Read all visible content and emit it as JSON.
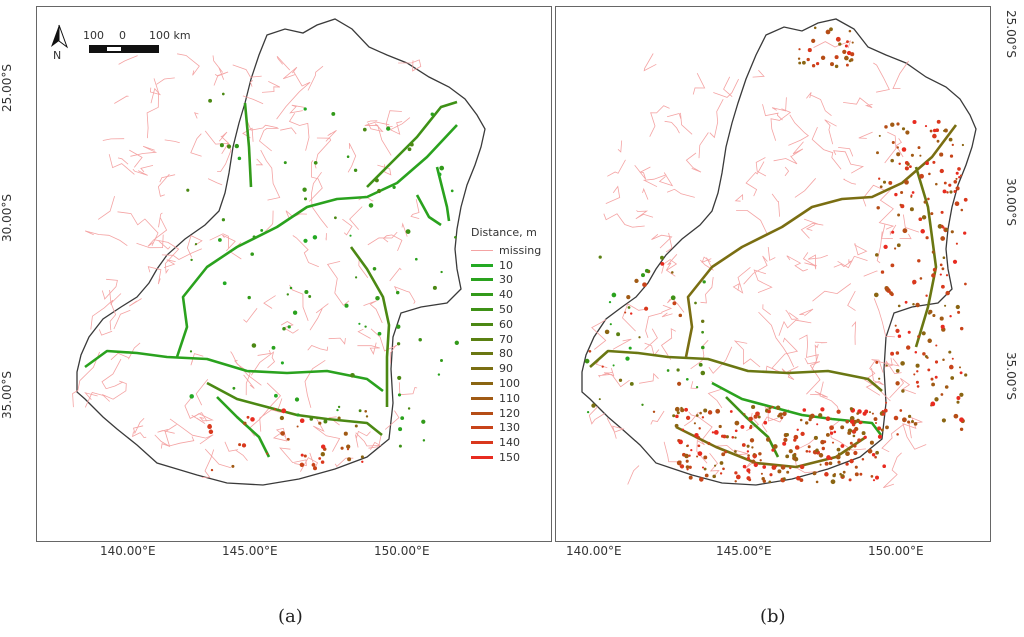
{
  "panels": [
    {
      "caption": "(a)",
      "x_ticks": [
        "140.00°E",
        "145.00°E",
        "150.00°E"
      ],
      "y_ticks": [
        "25.00°S",
        "30.00°S",
        "35.00°S"
      ],
      "scale_bar": {
        "labels": [
          "100",
          "0",
          "100 km"
        ]
      },
      "north_arrow_label": "N",
      "legend": {
        "title": "Distance, m",
        "entries": [
          {
            "label": "missing",
            "color": "#f4a3a3"
          },
          {
            "label": "10",
            "color": "#23a923"
          },
          {
            "label": "30",
            "color": "#2aa21e"
          },
          {
            "label": "40",
            "color": "#329a1a"
          },
          {
            "label": "50",
            "color": "#3e9116"
          },
          {
            "label": "60",
            "color": "#4b8813"
          },
          {
            "label": "70",
            "color": "#5a8012"
          },
          {
            "label": "80",
            "color": "#6a7712"
          },
          {
            "label": "90",
            "color": "#7a6e12"
          },
          {
            "label": "100",
            "color": "#8a6512"
          },
          {
            "label": "110",
            "color": "#a05a14"
          },
          {
            "label": "120",
            "color": "#b54d16"
          },
          {
            "label": "130",
            "color": "#c84319"
          },
          {
            "label": "140",
            "color": "#d9381d"
          },
          {
            "label": "150",
            "color": "#e82b20"
          }
        ]
      }
    },
    {
      "caption": "(b)",
      "x_ticks": [
        "140.00°E",
        "145.00°E",
        "150.00°E"
      ],
      "y_ticks": [
        "25.00°S",
        "30.00°S",
        "35.00°S"
      ]
    }
  ],
  "colors": {
    "basin_outline": "#3a3a3a",
    "river_missing": "#f4a3a3",
    "river_low": "#23a923",
    "river_high": "#e82b20"
  }
}
